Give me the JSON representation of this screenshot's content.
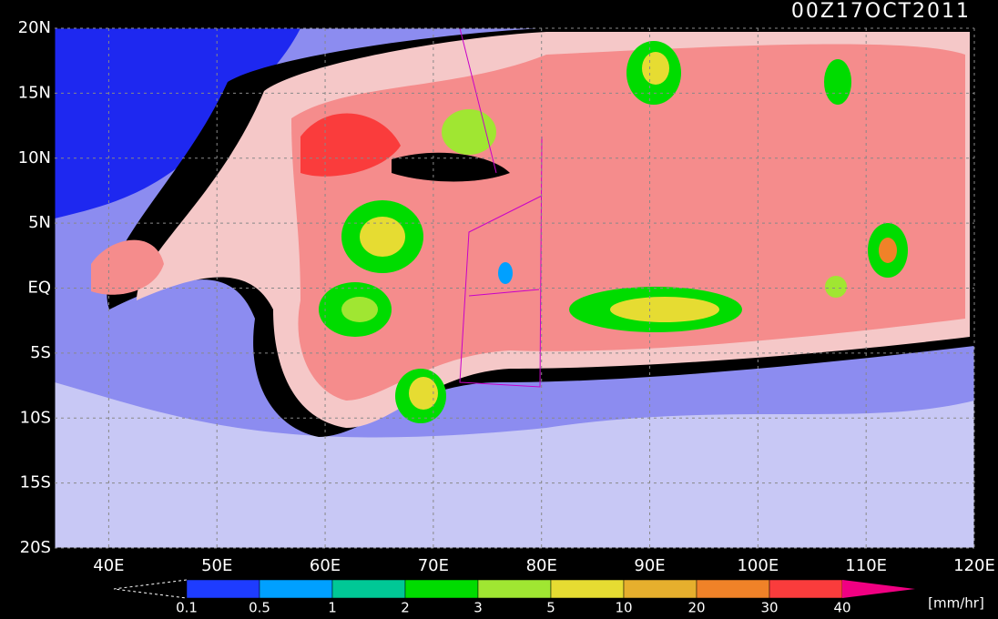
{
  "map": {
    "title": "00Z17OCT2011",
    "lon_range": [
      35,
      120
    ],
    "lat_range": [
      -20,
      20
    ],
    "lat_ticks": [
      {
        "value": 20,
        "label": "20N"
      },
      {
        "value": 15,
        "label": "15N"
      },
      {
        "value": 10,
        "label": "10N"
      },
      {
        "value": 5,
        "label": "5N"
      },
      {
        "value": 0,
        "label": "EQ"
      },
      {
        "value": -5,
        "label": "5S"
      },
      {
        "value": -10,
        "label": "10S"
      },
      {
        "value": -15,
        "label": "15S"
      },
      {
        "value": -20,
        "label": "20S"
      }
    ],
    "lon_ticks": [
      {
        "value": 40,
        "label": "40E"
      },
      {
        "value": 50,
        "label": "50E"
      },
      {
        "value": 60,
        "label": "60E"
      },
      {
        "value": 70,
        "label": "70E"
      },
      {
        "value": 80,
        "label": "80E"
      },
      {
        "value": 90,
        "label": "90E"
      },
      {
        "value": 100,
        "label": "100E"
      },
      {
        "value": 110,
        "label": "110E"
      },
      {
        "value": 120,
        "label": "120E"
      }
    ],
    "colorbar": {
      "levels": [
        0.1,
        0.5,
        1,
        2,
        3,
        5,
        10,
        20,
        30,
        40
      ],
      "colors": [
        "#1e3cff",
        "#00a0ff",
        "#00c896",
        "#00dc00",
        "#a0e632",
        "#e6dc32",
        "#e6af2d",
        "#f08228",
        "#fa3c3c",
        "#f00082"
      ],
      "units": "[mm/hr]"
    }
  }
}
